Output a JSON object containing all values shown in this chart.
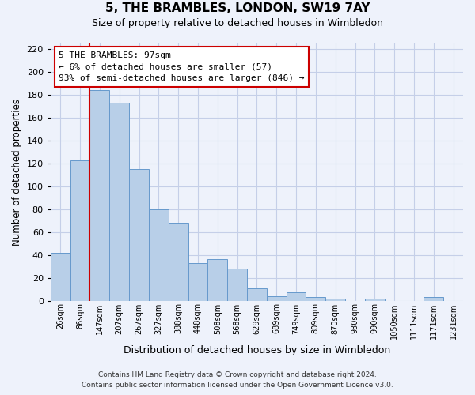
{
  "title": "5, THE BRAMBLES, LONDON, SW19 7AY",
  "subtitle": "Size of property relative to detached houses in Wimbledon",
  "xlabel": "Distribution of detached houses by size in Wimbledon",
  "ylabel": "Number of detached properties",
  "bar_labels": [
    "26sqm",
    "86sqm",
    "147sqm",
    "207sqm",
    "267sqm",
    "327sqm",
    "388sqm",
    "448sqm",
    "508sqm",
    "568sqm",
    "629sqm",
    "689sqm",
    "749sqm",
    "809sqm",
    "870sqm",
    "930sqm",
    "990sqm",
    "1050sqm",
    "1111sqm",
    "1171sqm",
    "1231sqm"
  ],
  "bar_values": [
    42,
    123,
    184,
    173,
    115,
    80,
    68,
    33,
    36,
    28,
    11,
    4,
    7,
    3,
    2,
    0,
    2,
    0,
    0,
    3,
    0
  ],
  "bar_color": "#b8cfe8",
  "bar_edge_color": "#6699cc",
  "vline_color": "#cc0000",
  "annotation_line1": "5 THE BRAMBLES: 97sqm",
  "annotation_line2": "← 6% of detached houses are smaller (57)",
  "annotation_line3": "93% of semi-detached houses are larger (846) →",
  "box_edge_color": "#cc0000",
  "ylim": [
    0,
    225
  ],
  "yticks": [
    0,
    20,
    40,
    60,
    80,
    100,
    120,
    140,
    160,
    180,
    200,
    220
  ],
  "footer_line1": "Contains HM Land Registry data © Crown copyright and database right 2024.",
  "footer_line2": "Contains public sector information licensed under the Open Government Licence v3.0.",
  "background_color": "#eef2fb",
  "grid_color": "#c5cfe8"
}
